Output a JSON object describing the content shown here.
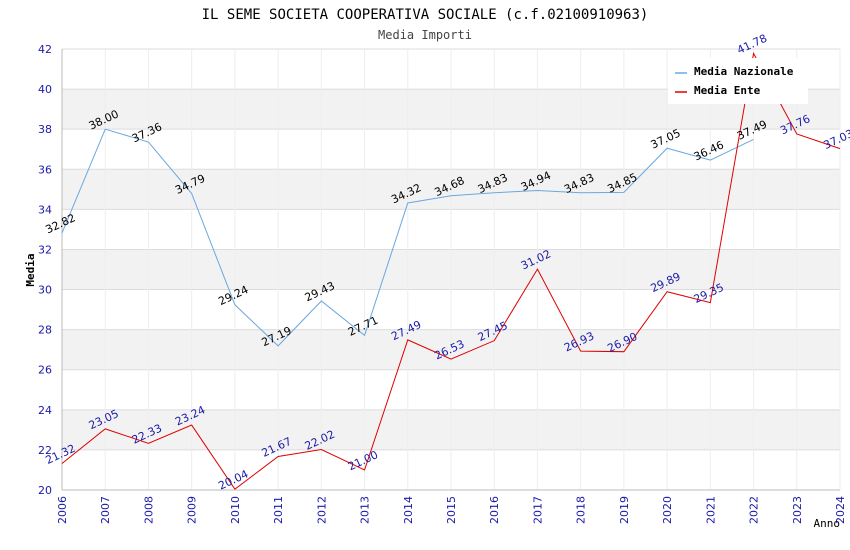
{
  "chart_data": {
    "type": "line",
    "title": "IL SEME SOCIETA COOPERATIVA SOCIALE (c.f.02100910963)",
    "subtitle": "Media Importi",
    "xlabel": "Anno",
    "ylabel": "Media",
    "ylim": [
      20,
      42
    ],
    "yticks": [
      "20",
      "22",
      "24",
      "26",
      "28",
      "30",
      "32",
      "34",
      "36",
      "38",
      "40",
      "42"
    ],
    "categories": [
      "2006",
      "2007",
      "2008",
      "2009",
      "2010",
      "2011",
      "2012",
      "2013",
      "2014",
      "2015",
      "2016",
      "2017",
      "2018",
      "2019",
      "2020",
      "2021",
      "2022",
      "2023",
      "2024"
    ],
    "series": [
      {
        "name": "Media Nazionale",
        "color": "#6aa8e0",
        "values": [
          32.82,
          38.0,
          37.36,
          34.79,
          29.24,
          27.19,
          29.43,
          27.71,
          34.32,
          34.68,
          34.83,
          34.94,
          34.83,
          34.85,
          37.05,
          36.46,
          37.49,
          null,
          null
        ],
        "labels": [
          "32.82",
          "38.00",
          "37.36",
          "34.79",
          "29.24",
          "27.19",
          "29.43",
          "27.71",
          "34.32",
          "34.68",
          "34.83",
          "34.94",
          "34.83",
          "34.85",
          "37.05",
          "36.46",
          "37.49",
          null,
          null
        ]
      },
      {
        "name": "Media Ente",
        "color": "#e00000",
        "values": [
          21.32,
          23.05,
          22.33,
          23.24,
          20.04,
          21.67,
          22.02,
          21.0,
          27.49,
          26.53,
          27.45,
          31.02,
          26.93,
          26.9,
          29.89,
          29.35,
          41.78,
          37.76,
          37.03
        ],
        "labels": [
          "21.32",
          "23.05",
          "22.33",
          "23.24",
          "20.04",
          "21.67",
          "22.02",
          "21.00",
          "27.49",
          "26.53",
          "27.45",
          "31.02",
          "26.93",
          "26.90",
          "29.89",
          "29.35",
          "41.78",
          "37.76",
          "37.03"
        ]
      }
    ],
    "legend": "top-right",
    "grid": true
  }
}
